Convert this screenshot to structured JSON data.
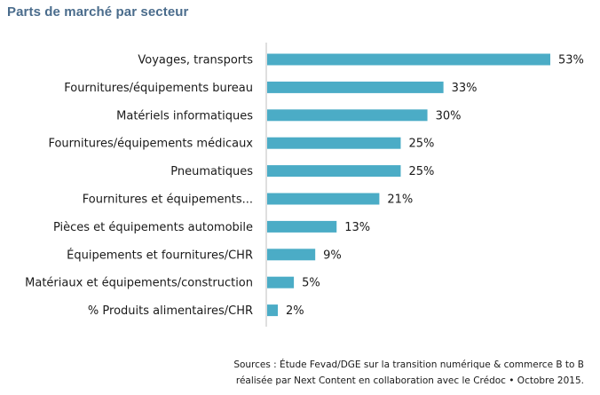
{
  "title": "Parts de marché par secteur",
  "chart_data": {
    "type": "bar",
    "orientation": "horizontal",
    "categories": [
      "Voyages, transports",
      "Fournitures/équipements bureau",
      "Matériels informatiques",
      "Fournitures/équipements médicaux",
      "Pneumatiques",
      "Fournitures et équipements...",
      "Pièces et équipements automobile",
      "Équipements et fournitures/CHR",
      "Matériaux et équipements/construction",
      "% Produits alimentaires/CHR"
    ],
    "values": [
      53,
      33,
      30,
      25,
      25,
      21,
      13,
      9,
      5,
      2
    ],
    "value_labels": [
      "53%",
      "33%",
      "30%",
      "25%",
      "25%",
      "21%",
      "13%",
      "9%",
      "5%",
      "2%"
    ],
    "title": "Parts de marché par secteur",
    "xlabel": "",
    "ylabel": "",
    "xlim": [
      0,
      53
    ],
    "grid": false,
    "bar_color": "#4bacc6"
  },
  "source": {
    "line1": "Sources : Étude Fevad/DGE sur la transition numérique & commerce B to B",
    "line2": "réalisée par Next Content en collaboration avec le Crédoc • Octobre 2015."
  }
}
